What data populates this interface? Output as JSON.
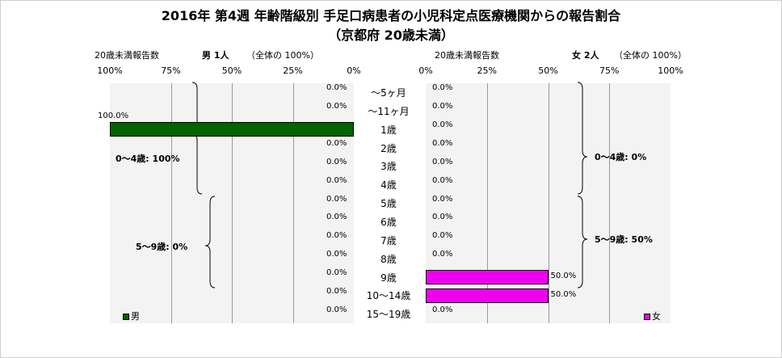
{
  "title": "2016年 第4週 年齢階級別 手足口病患者の小児科定点医療機関からの報告割合",
  "subtitle": "（京都府 20歳未満）",
  "chart_data": {
    "type": "bar",
    "categories": [
      "〜5ヶ月",
      "〜11ヶ月",
      "1歳",
      "2歳",
      "3歳",
      "4歳",
      "5歳",
      "6歳",
      "7歳",
      "8歳",
      "9歳",
      "10〜14歳",
      "15〜19歳"
    ],
    "tick_labels_left": [
      "100%",
      "75%",
      "50%",
      "25%",
      "0%"
    ],
    "tick_labels_right": [
      "0%",
      "25%",
      "50%",
      "75%",
      "100%"
    ],
    "xlim": [
      0,
      100
    ],
    "grid": true,
    "panels": [
      {
        "side": "left",
        "name": "男",
        "header_label": "20歳未満報告数",
        "header_count": "男  1人",
        "header_note": "（全体の  100%）",
        "color": "#006400",
        "values": [
          0,
          0,
          100,
          0,
          0,
          0,
          0,
          0,
          0,
          0,
          0,
          0,
          0
        ],
        "labels": [
          "0.0%",
          "0.0%",
          "100.0%",
          "0.0%",
          "0.0%",
          "0.0%",
          "0.0%",
          "0.0%",
          "0.0%",
          "0.0%",
          "0.0%",
          "0.0%",
          "0.0%"
        ],
        "groups": [
          "0〜4歳: 100%",
          "5〜9歳: 0%"
        ],
        "legend": "男"
      },
      {
        "side": "right",
        "name": "女",
        "header_label": "20歳未満報告数",
        "header_count": "女  2人",
        "header_note": "（全体の  100%）",
        "color": "#ee00ee",
        "values": [
          0,
          0,
          0,
          0,
          0,
          0,
          0,
          0,
          0,
          0,
          50,
          50,
          0
        ],
        "labels": [
          "0.0%",
          "0.0%",
          "0.0%",
          "0.0%",
          "0.0%",
          "0.0%",
          "0.0%",
          "0.0%",
          "0.0%",
          "0.0%",
          "50.0%",
          "50.0%",
          "0.0%"
        ],
        "groups": [
          "0〜4歳: 0%",
          "5〜9歳: 50%"
        ],
        "legend": "女"
      }
    ]
  }
}
